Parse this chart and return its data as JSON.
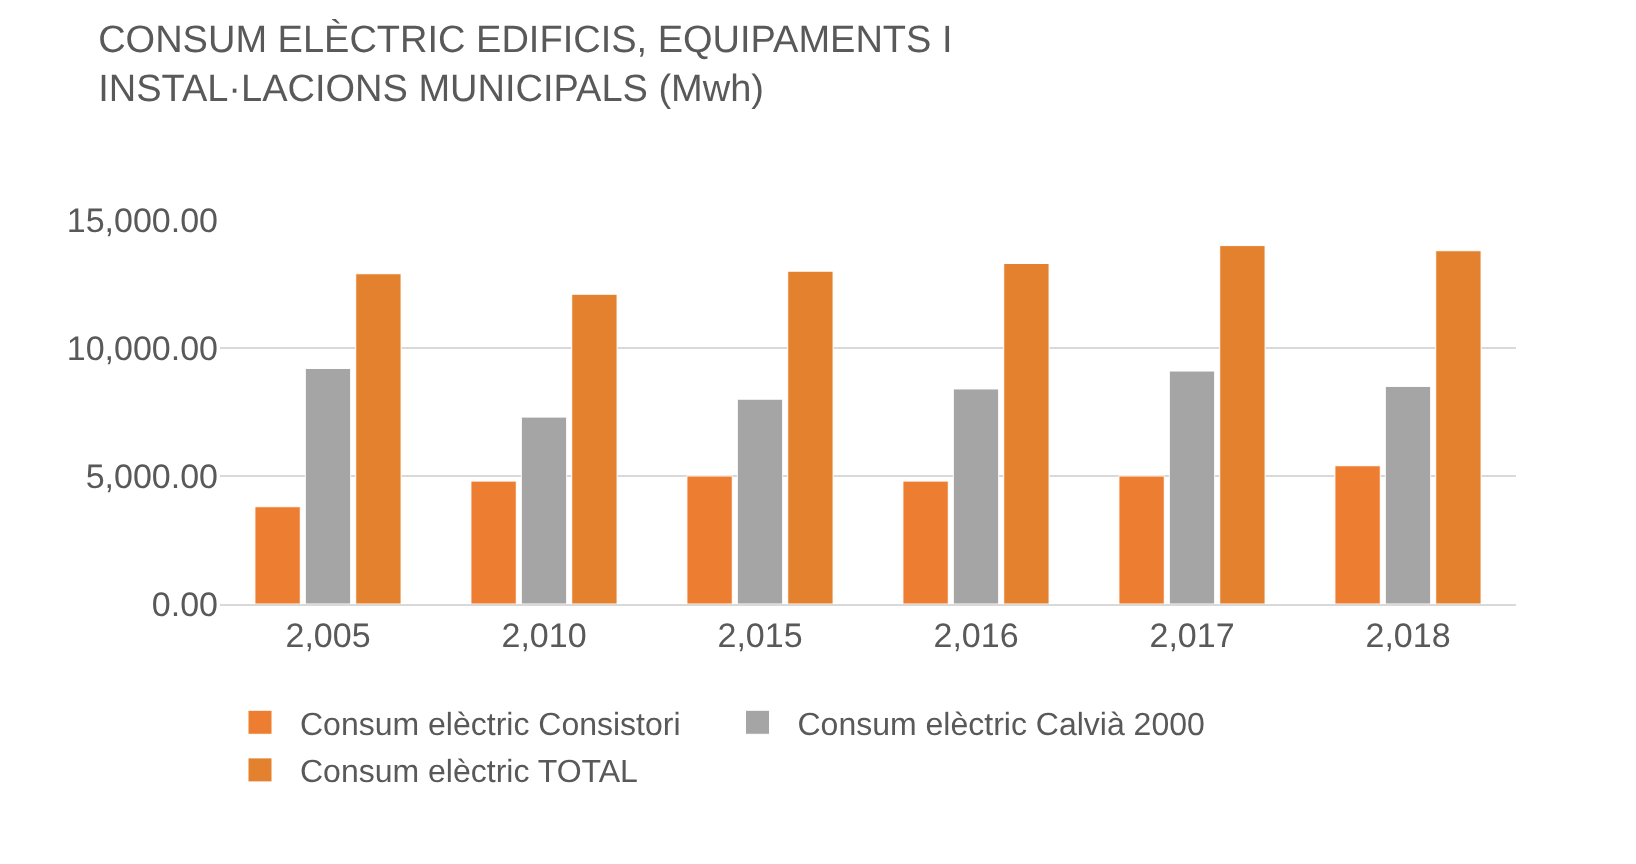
{
  "chart_data": {
    "type": "bar",
    "title": "CONSUM ELÈCTRIC EDIFICIS, EQUIPAMENTS I\nINSTAL·LACIONS MUNICIPALS (Mwh)",
    "categories": [
      "2,005",
      "2,010",
      "2,015",
      "2,016",
      "2,017",
      "2,018"
    ],
    "series": [
      {
        "name": "Consum elèctric Consistori",
        "color": "#ed7d31",
        "values": [
          3800,
          4800,
          5000,
          4800,
          5000,
          5400
        ]
      },
      {
        "name": "Consum elèctric Calvià 2000",
        "color": "#a5a5a5",
        "values": [
          9200,
          7300,
          8000,
          8400,
          9100,
          8500
        ]
      },
      {
        "name": "Consum elèctric TOTAL",
        "color": "#e4812f",
        "values": [
          12900,
          12100,
          13000,
          13300,
          14000,
          13800
        ]
      }
    ],
    "ylim": [
      0,
      15000
    ],
    "yticks": [
      {
        "value": 0,
        "label": "0.00"
      },
      {
        "value": 5000,
        "label": "5,000.00"
      },
      {
        "value": 10000,
        "label": "10,000.00"
      },
      {
        "value": 15000,
        "label": "15,000.00"
      }
    ],
    "grid": "y",
    "legend": "bottom"
  }
}
